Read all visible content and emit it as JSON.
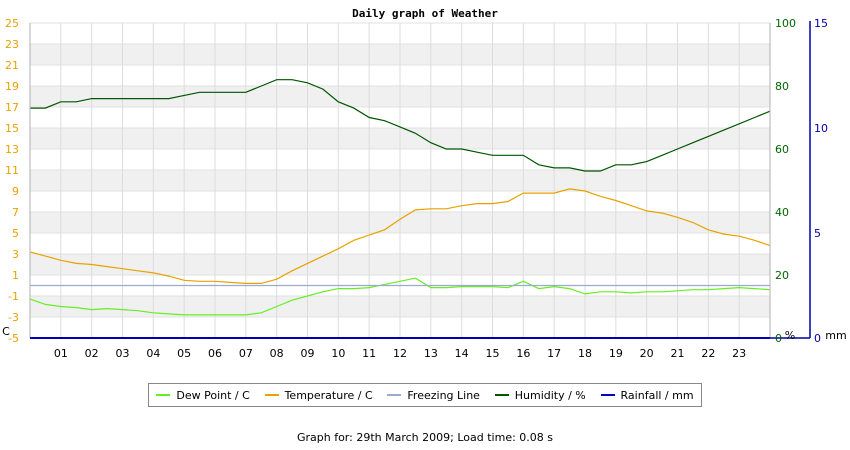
{
  "chart_data": {
    "type": "line",
    "title": "Daily graph of Weather",
    "x_ticks": [
      "01",
      "02",
      "03",
      "04",
      "05",
      "06",
      "07",
      "08",
      "09",
      "10",
      "11",
      "12",
      "13",
      "14",
      "15",
      "16",
      "17",
      "18",
      "19",
      "20",
      "21",
      "22",
      "23"
    ],
    "xlim": [
      0,
      24
    ],
    "y_left": {
      "unit": "C",
      "ticks": [
        -5,
        -3,
        -1,
        1,
        3,
        5,
        7,
        9,
        11,
        13,
        15,
        17,
        19,
        21,
        23,
        25
      ],
      "range": [
        -5,
        25
      ],
      "color": "#e8a200"
    },
    "y_humidity": {
      "unit": "%",
      "ticks": [
        0,
        20,
        40,
        60,
        80,
        100
      ],
      "range": [
        0,
        100
      ],
      "color": "#006600"
    },
    "y_rain": {
      "unit": "mm",
      "ticks": [
        0,
        5,
        10,
        15
      ],
      "range": [
        0,
        15
      ],
      "color": "#0000aa"
    },
    "grid": true,
    "series": [
      {
        "name": "Dew Point / C",
        "color": "#66ee22",
        "axis": "left",
        "x": [
          0,
          0.5,
          1,
          1.5,
          2,
          2.5,
          3,
          3.5,
          4,
          4.5,
          5,
          5.5,
          6,
          6.5,
          7,
          7.5,
          8,
          8.5,
          9,
          9.5,
          10,
          10.5,
          11,
          11.5,
          12,
          12.5,
          13,
          13.5,
          14,
          14.5,
          15,
          15.5,
          16,
          16.5,
          17,
          17.5,
          18,
          18.5,
          19,
          19.5,
          20,
          20.5,
          21,
          21.5,
          22,
          22.5,
          23,
          23.5,
          24
        ],
        "y": [
          -1.3,
          -1.8,
          -2.0,
          -2.1,
          -2.3,
          -2.2,
          -2.3,
          -2.4,
          -2.6,
          -2.7,
          -2.8,
          -2.8,
          -2.8,
          -2.8,
          -2.8,
          -2.6,
          -2.0,
          -1.4,
          -1.0,
          -0.6,
          -0.3,
          -0.3,
          -0.2,
          0.1,
          0.4,
          0.7,
          -0.2,
          -0.2,
          -0.1,
          -0.1,
          -0.1,
          -0.2,
          0.4,
          -0.3,
          -0.1,
          -0.3,
          -0.8,
          -0.6,
          -0.6,
          -0.7,
          -0.6,
          -0.6,
          -0.5,
          -0.4,
          -0.4,
          -0.3,
          -0.2,
          -0.3,
          -0.4
        ]
      },
      {
        "name": "Temperature / C",
        "color": "#e8a200",
        "axis": "left",
        "x": [
          0,
          0.5,
          1,
          1.5,
          2,
          2.5,
          3,
          3.5,
          4,
          4.5,
          5,
          5.5,
          6,
          6.5,
          7,
          7.5,
          8,
          8.5,
          9,
          9.5,
          10,
          10.5,
          11,
          11.5,
          12,
          12.5,
          13,
          13.5,
          14,
          14.5,
          15,
          15.5,
          16,
          16.5,
          17,
          17.5,
          18,
          18.5,
          19,
          19.5,
          20,
          20.5,
          21,
          21.5,
          22,
          22.5,
          23,
          23.5,
          24
        ],
        "y": [
          3.2,
          2.8,
          2.4,
          2.1,
          2.0,
          1.8,
          1.6,
          1.4,
          1.2,
          0.9,
          0.5,
          0.4,
          0.4,
          0.3,
          0.2,
          0.2,
          0.6,
          1.4,
          2.1,
          2.8,
          3.5,
          4.3,
          4.8,
          5.3,
          6.3,
          7.2,
          7.3,
          7.3,
          7.6,
          7.8,
          7.8,
          8.0,
          8.8,
          8.8,
          8.8,
          9.2,
          9.0,
          8.5,
          8.1,
          7.6,
          7.1,
          6.9,
          6.5,
          6.0,
          5.3,
          4.9,
          4.7,
          4.3,
          3.8
        ]
      },
      {
        "name": "Freezing Line",
        "color": "#99aacc",
        "axis": "left",
        "x": [
          0,
          24
        ],
        "y": [
          0,
          0
        ]
      },
      {
        "name": "Humidity / %",
        "color": "#005500",
        "axis": "humidity",
        "x": [
          0,
          0.5,
          1,
          1.5,
          2,
          2.5,
          3,
          3.5,
          4,
          4.5,
          5,
          5.5,
          6,
          6.5,
          7,
          7.5,
          8,
          8.5,
          9,
          9.5,
          10,
          10.5,
          11,
          11.5,
          12,
          12.5,
          13,
          13.5,
          14,
          14.5,
          15,
          15.5,
          16,
          16.5,
          17,
          17.5,
          18,
          18.5,
          19,
          19.5,
          20,
          20.5,
          21,
          21.5,
          22,
          22.5,
          23,
          23.5,
          24
        ],
        "y": [
          73,
          73,
          75,
          75,
          76,
          76,
          76,
          76,
          76,
          76,
          77,
          78,
          78,
          78,
          78,
          80,
          82,
          82,
          81,
          79,
          75,
          73,
          70,
          69,
          67,
          65,
          62,
          60,
          60,
          59,
          58,
          58,
          58,
          55,
          54,
          54,
          53,
          53,
          55,
          55,
          56,
          58,
          60,
          62,
          64,
          66,
          68,
          70,
          72
        ]
      },
      {
        "name": "Rainfall / mm",
        "color": "#0000cc",
        "axis": "rain",
        "x": [
          0,
          24
        ],
        "y": [
          0,
          0
        ]
      }
    ]
  },
  "footer": "Graph for: 29th March 2009; Load time: 0.08 s"
}
